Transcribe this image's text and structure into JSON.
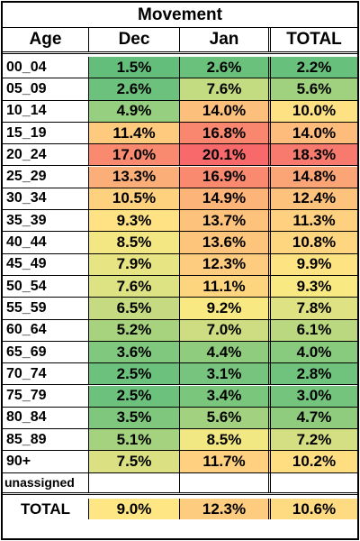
{
  "title": "Movement",
  "headers": [
    "Age",
    "Dec",
    "Jan",
    "TOTAL"
  ],
  "rows": [
    {
      "age": "00_04",
      "dec": "1.5%",
      "jan": "2.6%",
      "total": "2.2%",
      "colors": [
        "#63be7b",
        "#6ac17c",
        "#67c07b"
      ]
    },
    {
      "age": "05_09",
      "dec": "2.6%",
      "jan": "7.6%",
      "total": "5.6%",
      "colors": [
        "#6cc17c",
        "#c3db81",
        "#9fd17f"
      ]
    },
    {
      "age": "10_14",
      "dec": "4.9%",
      "jan": "14.0%",
      "total": "10.0%",
      "colors": [
        "#96cf7f",
        "#fdc07c",
        "#fee182"
      ]
    },
    {
      "age": "15_19",
      "dec": "11.4%",
      "jan": "16.8%",
      "total": "14.0%",
      "colors": [
        "#feca7e",
        "#f9876f",
        "#fdbc7b"
      ]
    },
    {
      "age": "20_24",
      "dec": "17.0%",
      "jan": "20.1%",
      "total": "18.3%",
      "colors": [
        "#f98a70",
        "#f8696b",
        "#f87a6e"
      ]
    },
    {
      "age": "25_29",
      "dec": "13.3%",
      "jan": "16.9%",
      "total": "14.8%",
      "colors": [
        "#fbae78",
        "#f98a70",
        "#fba576"
      ]
    },
    {
      "age": "30_34",
      "dec": "10.5%",
      "jan": "14.9%",
      "total": "12.4%",
      "colors": [
        "#fed17f",
        "#fcb479",
        "#fdc37c"
      ]
    },
    {
      "age": "35_39",
      "dec": "9.3%",
      "jan": "13.7%",
      "total": "11.3%",
      "colors": [
        "#ffe283",
        "#fdc27c",
        "#fed07f"
      ]
    },
    {
      "age": "40_44",
      "dec": "8.5%",
      "jan": "13.6%",
      "total": "10.8%",
      "colors": [
        "#f3e783",
        "#fdc47c",
        "#fed680"
      ]
    },
    {
      "age": "45_49",
      "dec": "7.9%",
      "jan": "12.3%",
      "total": "9.9%",
      "colors": [
        "#e6e483",
        "#fdcc7e",
        "#fee383"
      ]
    },
    {
      "age": "50_54",
      "dec": "7.6%",
      "jan": "11.1%",
      "total": "9.3%",
      "colors": [
        "#dde283",
        "#fed57f",
        "#f8e983"
      ]
    },
    {
      "age": "55_59",
      "dec": "6.5%",
      "jan": "9.2%",
      "total": "7.8%",
      "colors": [
        "#c6db81",
        "#f8e983",
        "#dfe283"
      ]
    },
    {
      "age": "60_64",
      "dec": "5.2%",
      "jan": "7.0%",
      "total": "6.1%",
      "colors": [
        "#a7d37f",
        "#cfdd82",
        "#bad880"
      ]
    },
    {
      "age": "65_69",
      "dec": "3.6%",
      "jan": "4.4%",
      "total": "4.0%",
      "colors": [
        "#80c87d",
        "#90cc7e",
        "#88ca7e"
      ]
    },
    {
      "age": "70_74",
      "dec": "2.5%",
      "jan": "3.1%",
      "total": "2.8%",
      "colors": [
        "#6cc17c",
        "#76c47d",
        "#70c37c"
      ]
    },
    {
      "age": "75_79",
      "dec": "2.5%",
      "jan": "3.4%",
      "total": "3.0%",
      "colors": [
        "#6cc17c",
        "#7ac67d",
        "#74c47d"
      ]
    },
    {
      "age": "80_84",
      "dec": "3.5%",
      "jan": "5.6%",
      "total": "4.7%",
      "colors": [
        "#7ec77d",
        "#a2d27f",
        "#8fcc7e"
      ]
    },
    {
      "age": "85_89",
      "dec": "5.1%",
      "jan": "8.5%",
      "total": "7.2%",
      "colors": [
        "#a4d27f",
        "#f1e783",
        "#d3df82"
      ]
    },
    {
      "age": "90+",
      "dec": "7.5%",
      "jan": "11.7%",
      "total": "10.2%",
      "colors": [
        "#dbe182",
        "#fed07f",
        "#ffde82"
      ]
    },
    {
      "age": "unassigned",
      "dec": "",
      "jan": "",
      "total": "",
      "colors": [
        "#ffffff",
        "#ffffff",
        "#ffffff"
      ]
    }
  ],
  "total_row": {
    "age": "TOTAL",
    "dec": "9.0%",
    "jan": "12.3%",
    "total": "10.6%",
    "colors": [
      "#fde683",
      "#fdcc7e",
      "#fedb81"
    ]
  }
}
